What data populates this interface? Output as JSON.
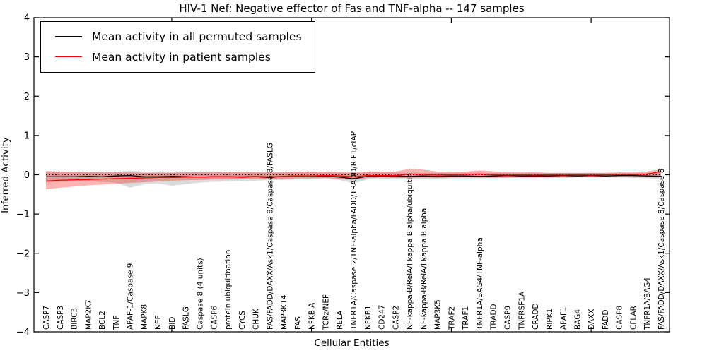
{
  "window": {
    "background": "#ffffff"
  },
  "chart_data": {
    "type": "line",
    "title": "HIV-1 Nef: Negative effector of Fas and TNF-alpha -- 147 samples",
    "xlabel": "Cellular Entities",
    "ylabel": "Inferred Activity",
    "ylim": [
      -4,
      4
    ],
    "yticks": [
      4,
      3,
      2,
      1,
      0,
      -1,
      -2,
      -3,
      -4
    ],
    "grid": false,
    "legend_position": "upper left",
    "x_tick_marks_at_category_numbers": [
      10,
      20,
      30,
      40
    ],
    "categories": [
      "CASP7",
      "CASP3",
      "BIRC3",
      "MAP2K7",
      "BCL2",
      "TNF",
      "APAF-1/Caspase 9",
      "MAPK8",
      "NEF",
      "BID",
      "FASLG",
      "Caspase 8 (4 units)",
      "CASP6",
      "protein ubiquitination",
      "CYCS",
      "CHUK",
      "FAS/FADD/DAXX/Ask1/Caspase 8/Caspase 8/FASLG",
      "MAP3K14",
      "FAS",
      "NFKBIA",
      "TCRz/NEF",
      "RELA",
      "TNFR1A/Caspase 2/TNF-alpha/FADD/TRADD/RIP1/cIAP",
      "NFKB1",
      "CD247",
      "CASP2",
      "NF-kappa-B/RelA/I kappa B alpha/ubiquitin",
      "NF-kappa-B/RelA/I kappa B alpha",
      "MAP3K5",
      "TRAF2",
      "TRAF1",
      "TNFR1A/BAG4/TNF-alpha",
      "TRADD",
      "CASP9",
      "TNFRSF1A",
      "CRADD",
      "RIPK1",
      "APAF1",
      "BAG4",
      "DAXX",
      "FADD",
      "CASP8",
      "CFLAR",
      "TNFR1A/BAG4",
      "FAS/FADD/DAXX/Ask1/Caspase 8/Caspase 8"
    ],
    "series": [
      {
        "name": "Mean activity in all permuted samples",
        "type": "line",
        "color": "#000000",
        "values": [
          -0.05,
          -0.05,
          -0.05,
          -0.04,
          -0.05,
          -0.03,
          -0.02,
          -0.05,
          -0.05,
          -0.04,
          -0.05,
          -0.06,
          -0.05,
          -0.05,
          -0.06,
          -0.05,
          -0.07,
          -0.04,
          -0.03,
          -0.04,
          -0.03,
          -0.06,
          -0.1,
          -0.04,
          -0.03,
          -0.03,
          -0.04,
          -0.03,
          -0.04,
          -0.03,
          -0.03,
          -0.04,
          -0.03,
          -0.02,
          -0.03,
          -0.03,
          -0.03,
          -0.02,
          -0.03,
          -0.02,
          -0.03,
          -0.02,
          -0.02,
          -0.03,
          -0.04
        ],
        "band": {
          "upper": [
            0.07,
            0.06,
            0.06,
            0.06,
            0.07,
            0.08,
            0.1,
            0.08,
            0.07,
            0.08,
            0.07,
            0.06,
            0.06,
            0.07,
            0.06,
            0.06,
            0.05,
            0.06,
            0.06,
            0.06,
            0.06,
            0.05,
            0.04,
            0.06,
            0.06,
            0.06,
            0.05,
            0.05,
            0.05,
            0.05,
            0.05,
            0.05,
            0.05,
            0.05,
            0.05,
            0.05,
            0.04,
            0.05,
            0.04,
            0.05,
            0.04,
            0.05,
            0.04,
            0.05,
            0.06
          ],
          "lower": [
            -0.2,
            -0.18,
            -0.17,
            -0.16,
            -0.18,
            -0.2,
            -0.33,
            -0.25,
            -0.22,
            -0.28,
            -0.24,
            -0.2,
            -0.18,
            -0.17,
            -0.16,
            -0.15,
            -0.14,
            -0.13,
            -0.12,
            -0.12,
            -0.11,
            -0.13,
            -0.22,
            -0.12,
            -0.11,
            -0.11,
            -0.1,
            -0.1,
            -0.1,
            -0.09,
            -0.09,
            -0.09,
            -0.09,
            -0.08,
            -0.08,
            -0.08,
            -0.08,
            -0.08,
            -0.07,
            -0.07,
            -0.07,
            -0.07,
            -0.08,
            -0.09,
            -0.12
          ],
          "color": "#888888",
          "opacity": 0.3
        }
      },
      {
        "name": "Mean activity in patient samples",
        "type": "line",
        "color": "#ff0000",
        "values": [
          -0.16,
          -0.14,
          -0.13,
          -0.12,
          -0.11,
          -0.1,
          -0.09,
          -0.08,
          -0.07,
          -0.07,
          -0.06,
          -0.06,
          -0.05,
          -0.05,
          -0.05,
          -0.04,
          -0.05,
          -0.04,
          -0.03,
          -0.03,
          -0.02,
          -0.03,
          -0.05,
          -0.02,
          -0.02,
          -0.02,
          0.02,
          0.01,
          -0.01,
          0.0,
          0.01,
          0.02,
          0.0,
          -0.01,
          0.0,
          -0.01,
          0.0,
          -0.01,
          0.0,
          -0.01,
          0.0,
          0.01,
          0.0,
          0.02,
          0.08
        ],
        "band": {
          "upper": [
            0.1,
            0.08,
            0.07,
            0.07,
            0.06,
            0.06,
            0.06,
            0.05,
            0.05,
            0.05,
            0.06,
            0.06,
            0.06,
            0.07,
            0.07,
            0.07,
            0.06,
            0.07,
            0.08,
            0.08,
            0.08,
            0.07,
            0.06,
            0.08,
            0.08,
            0.08,
            0.15,
            0.13,
            0.08,
            0.07,
            0.08,
            0.11,
            0.09,
            0.06,
            0.06,
            0.06,
            0.05,
            0.05,
            0.05,
            0.05,
            0.05,
            0.06,
            0.06,
            0.08,
            0.14
          ],
          "lower": [
            -0.37,
            -0.33,
            -0.3,
            -0.27,
            -0.25,
            -0.23,
            -0.21,
            -0.19,
            -0.17,
            -0.15,
            -0.14,
            -0.13,
            -0.12,
            -0.12,
            -0.11,
            -0.11,
            -0.12,
            -0.1,
            -0.09,
            -0.09,
            -0.08,
            -0.1,
            -0.13,
            -0.08,
            -0.07,
            -0.08,
            -0.08,
            -0.07,
            -0.08,
            -0.07,
            -0.06,
            -0.07,
            -0.07,
            -0.07,
            -0.06,
            -0.06,
            -0.06,
            -0.06,
            -0.05,
            -0.06,
            -0.05,
            -0.05,
            -0.05,
            -0.04,
            -0.03
          ]
        },
        "band_color": "#ff0000",
        "band_opacity": 0.3
      }
    ],
    "zero_line": {
      "y": 0,
      "style": "dotted",
      "color": "#000000"
    }
  },
  "legend": {
    "items": [
      {
        "label": "Mean activity in all permuted samples",
        "color": "#000000"
      },
      {
        "label": "Mean activity in patient samples",
        "color": "#ff0000"
      }
    ]
  }
}
